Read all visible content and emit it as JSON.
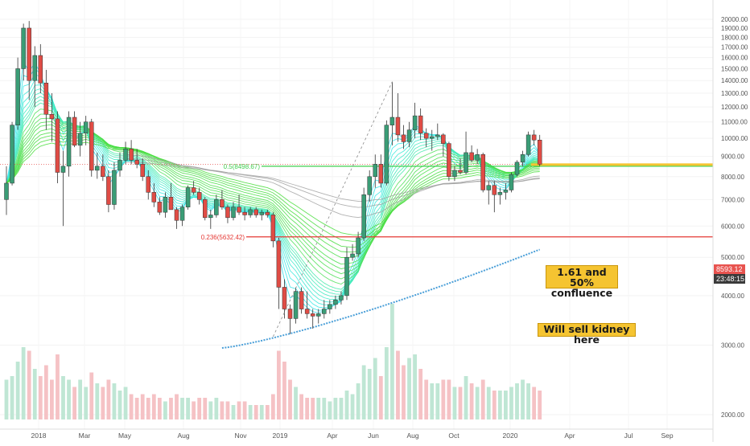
{
  "chart_data": {
    "type": "candlestick",
    "title": "",
    "x_ticks": [
      "2018",
      "Mar",
      "May",
      "Aug",
      "Nov",
      "2019",
      "Apr",
      "Jun",
      "Aug",
      "Oct",
      "2020",
      "Apr",
      "Jul",
      "Sep"
    ],
    "y_ticks": [
      "2000.00",
      "3000.00",
      "4000.00",
      "5000.00",
      "6000.00",
      "7000.00",
      "8000.00",
      "9000.00",
      "10000.00",
      "11000.00",
      "12000.00",
      "13000.00",
      "14000.00",
      "15000.00",
      "16000.00",
      "17000.00",
      "18000.00",
      "19000.00",
      "20000.00"
    ],
    "y_scale": "log",
    "ylim": [
      1800,
      21500
    ],
    "current_price": "8593.12",
    "countdown": "23:48:15",
    "fib_levels": [
      {
        "label": "0.5(8498.67)",
        "value": 8498.67,
        "color": "#3ecf4e"
      },
      {
        "label": "0.236(5632.42)",
        "value": 5632.42,
        "color": "#e53935"
      }
    ],
    "annotations": [
      {
        "text_line1": "1.61 and 50%",
        "text_line2": "confluence"
      },
      {
        "text_line1": "Will sell kidney here"
      }
    ],
    "ma200_start": 2950,
    "ma200_end": 5300,
    "candles_weekly": [
      [
        7000,
        8500,
        6400,
        7700
      ],
      [
        7700,
        11000,
        7600,
        10800
      ],
      [
        10800,
        16000,
        10500,
        15000
      ],
      [
        15000,
        19500,
        14000,
        19000
      ],
      [
        19000,
        19800,
        12500,
        14000
      ],
      [
        14000,
        17100,
        12000,
        16200
      ],
      [
        16200,
        17300,
        13000,
        13800
      ],
      [
        13800,
        14900,
        10500,
        11500
      ],
      [
        11500,
        13000,
        9800,
        11200
      ],
      [
        11200,
        11700,
        7700,
        8200
      ],
      [
        8200,
        9300,
        6000,
        8500
      ],
      [
        8500,
        11700,
        8000,
        11300
      ],
      [
        11300,
        11700,
        9500,
        9600
      ],
      [
        9600,
        11000,
        9000,
        10300
      ],
      [
        10300,
        11400,
        9600,
        11000
      ],
      [
        11000,
        11200,
        8000,
        8300
      ],
      [
        8300,
        9200,
        7900,
        8500
      ],
      [
        8500,
        9100,
        7800,
        8000
      ],
      [
        8000,
        8300,
        6500,
        6800
      ],
      [
        6800,
        8700,
        6600,
        8300
      ],
      [
        8300,
        9200,
        8000,
        8800
      ],
      [
        8800,
        9800,
        8600,
        9400
      ],
      [
        9400,
        9900,
        8600,
        8800
      ],
      [
        8800,
        9400,
        8400,
        8600
      ],
      [
        8600,
        8900,
        7800,
        8000
      ],
      [
        8000,
        8300,
        7000,
        7300
      ],
      [
        7300,
        7700,
        6700,
        6900
      ],
      [
        6900,
        7100,
        6400,
        6500
      ],
      [
        6500,
        7300,
        6300,
        7100
      ],
      [
        7100,
        7700,
        6600,
        6600
      ],
      [
        6600,
        6700,
        5900,
        6200
      ],
      [
        6200,
        6800,
        6000,
        6700
      ],
      [
        6700,
        7600,
        6600,
        7500
      ],
      [
        7500,
        7800,
        7200,
        7300
      ],
      [
        7300,
        7500,
        6800,
        7000
      ],
      [
        7000,
        7100,
        6200,
        6300
      ],
      [
        6300,
        6600,
        5900,
        6400
      ],
      [
        6400,
        7200,
        6300,
        7000
      ],
      [
        7000,
        7400,
        6600,
        6700
      ],
      [
        6700,
        6800,
        6100,
        6300
      ],
      [
        6300,
        6900,
        6200,
        6700
      ],
      [
        6700,
        7200,
        6400,
        6500
      ],
      [
        6500,
        6700,
        6200,
        6400
      ],
      [
        6400,
        6700,
        6300,
        6600
      ],
      [
        6600,
        6700,
        6300,
        6400
      ],
      [
        6400,
        6600,
        6200,
        6500
      ],
      [
        6500,
        6600,
        6300,
        6400
      ],
      [
        6400,
        6500,
        5300,
        5500
      ],
      [
        5500,
        5600,
        3700,
        4200
      ],
      [
        4200,
        4400,
        3500,
        3700
      ],
      [
        3700,
        3800,
        3200,
        3500
      ],
      [
        3500,
        4200,
        3400,
        4100
      ],
      [
        4100,
        4200,
        3600,
        3700
      ],
      [
        3700,
        4100,
        3500,
        3600
      ],
      [
        3600,
        3700,
        3300,
        3550
      ],
      [
        3550,
        3700,
        3400,
        3600
      ],
      [
        3600,
        3900,
        3500,
        3700
      ],
      [
        3700,
        3900,
        3600,
        3800
      ],
      [
        3800,
        4000,
        3700,
        3900
      ],
      [
        3900,
        4100,
        3800,
        4000
      ],
      [
        4000,
        5300,
        3900,
        5000
      ],
      [
        5000,
        5400,
        4900,
        5100
      ],
      [
        5100,
        5800,
        5000,
        5600
      ],
      [
        5600,
        7500,
        5500,
        7200
      ],
      [
        7200,
        8300,
        6900,
        8000
      ],
      [
        8000,
        9100,
        7500,
        8600
      ],
      [
        8600,
        9100,
        7500,
        7700
      ],
      [
        7700,
        11100,
        7600,
        10800
      ],
      [
        10800,
        13900,
        9600,
        11300
      ],
      [
        11300,
        13000,
        9800,
        10200
      ],
      [
        10200,
        10800,
        9400,
        9800
      ],
      [
        9800,
        11000,
        9500,
        10500
      ],
      [
        10500,
        12300,
        10000,
        11400
      ],
      [
        11400,
        11900,
        9900,
        10300
      ],
      [
        10300,
        10600,
        9500,
        10000
      ],
      [
        10000,
        10500,
        9300,
        10100
      ],
      [
        10100,
        10900,
        9900,
        10200
      ],
      [
        10200,
        10300,
        9000,
        9700
      ],
      [
        9700,
        9800,
        7800,
        8000
      ],
      [
        8000,
        8500,
        7800,
        8300
      ],
      [
        8300,
        8900,
        8100,
        8200
      ],
      [
        8200,
        10400,
        8100,
        9200
      ],
      [
        9200,
        9600,
        8700,
        8800
      ],
      [
        8800,
        9400,
        8600,
        9100
      ],
      [
        9100,
        9200,
        7300,
        7400
      ],
      [
        7400,
        7800,
        6800,
        7600
      ],
      [
        7600,
        7800,
        6500,
        7200
      ],
      [
        7200,
        7500,
        6800,
        7300
      ],
      [
        7300,
        7700,
        7000,
        7400
      ],
      [
        7400,
        8200,
        7300,
        8100
      ],
      [
        8100,
        8800,
        8000,
        8700
      ],
      [
        8700,
        9300,
        8500,
        9100
      ],
      [
        9100,
        10400,
        9000,
        10200
      ],
      [
        10200,
        10500,
        9600,
        9900
      ],
      [
        9900,
        10200,
        8500,
        8600
      ]
    ],
    "volume_relative": [
      0.55,
      0.6,
      0.8,
      1.0,
      0.95,
      0.7,
      0.6,
      0.75,
      0.55,
      0.9,
      0.6,
      0.55,
      0.45,
      0.55,
      0.45,
      0.65,
      0.5,
      0.45,
      0.55,
      0.5,
      0.4,
      0.45,
      0.35,
      0.3,
      0.35,
      0.3,
      0.35,
      0.3,
      0.25,
      0.3,
      0.35,
      0.3,
      0.3,
      0.25,
      0.3,
      0.3,
      0.25,
      0.3,
      0.25,
      0.25,
      0.2,
      0.25,
      0.25,
      0.2,
      0.2,
      0.2,
      0.2,
      0.35,
      0.95,
      0.8,
      0.55,
      0.45,
      0.35,
      0.3,
      0.3,
      0.3,
      0.3,
      0.25,
      0.3,
      0.3,
      0.4,
      0.35,
      0.5,
      0.75,
      0.7,
      0.85,
      0.6,
      1.0,
      1.6,
      0.95,
      0.75,
      0.85,
      0.9,
      0.7,
      0.55,
      0.5,
      0.5,
      0.55,
      0.55,
      0.45,
      0.45,
      0.6,
      0.5,
      0.45,
      0.55,
      0.45,
      0.4,
      0.4,
      0.4,
      0.45,
      0.5,
      0.55,
      0.5,
      0.45,
      0.4
    ]
  }
}
